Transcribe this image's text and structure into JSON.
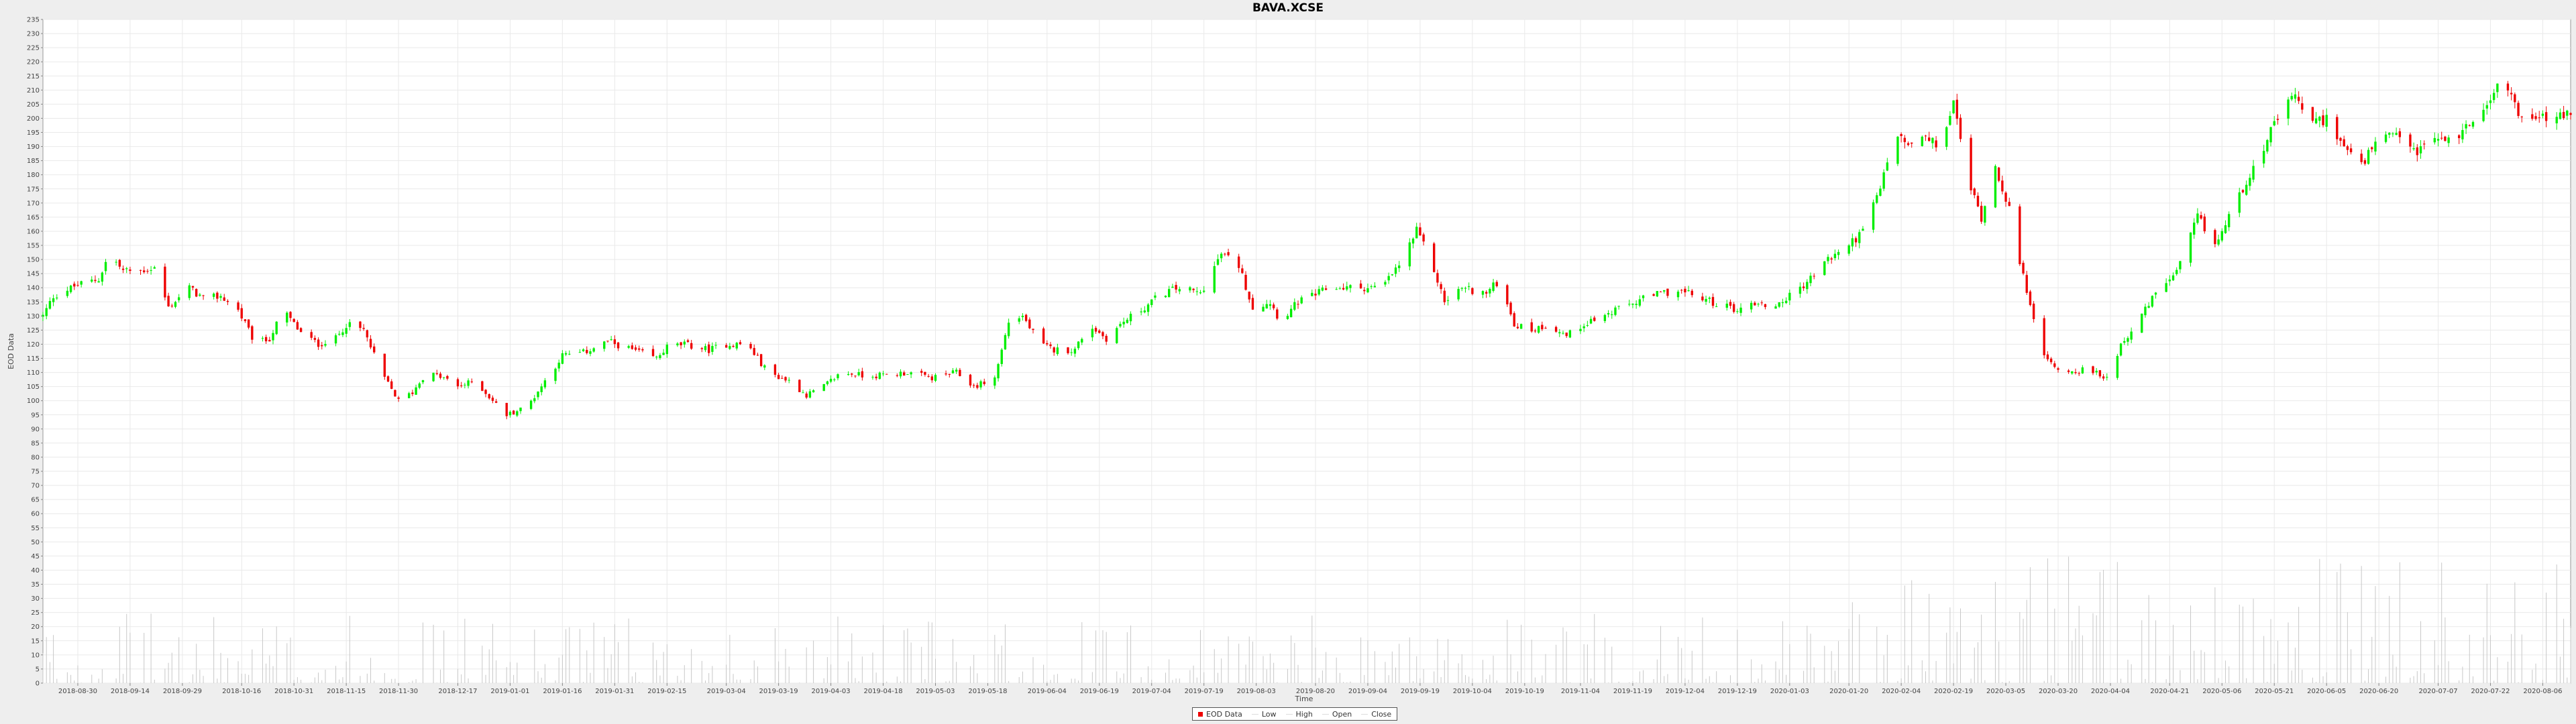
{
  "chart_data": {
    "type": "candlestick",
    "title": "BAVA.XCSE",
    "xlabel": "Time",
    "ylabel": "EOD Data",
    "ylim": [
      0,
      235
    ],
    "ytick_step": 5,
    "grid": true,
    "legend_position": "bottom-center",
    "legend": [
      "EOD Data",
      "Low",
      "High",
      "Open",
      "Close"
    ],
    "colors": {
      "up": "#00ee00",
      "down": "#ee0000",
      "volume": "#c8c8c8",
      "grid": "#e9e9e9",
      "plot_bg": "#ffffff"
    },
    "x_range": [
      "2018-08-20",
      "2020-08-14"
    ],
    "x_tick_labels": [
      "2018-08-30",
      "2018-09-14",
      "2018-09-29",
      "2018-10-16",
      "2018-10-31",
      "2018-11-15",
      "2018-11-30",
      "2018-12-17",
      "2019-01-01",
      "2019-01-16",
      "2019-01-31",
      "2019-02-15",
      "2019-03-04",
      "2019-03-19",
      "2019-04-03",
      "2019-04-18",
      "2019-05-03",
      "2019-05-18",
      "2019-06-04",
      "2019-06-19",
      "2019-07-04",
      "2019-07-19",
      "2019-08-03",
      "2019-08-20",
      "2019-09-04",
      "2019-09-19",
      "2019-10-04",
      "2019-10-19",
      "2019-11-04",
      "2019-11-19",
      "2019-12-04",
      "2019-12-19",
      "2020-01-03",
      "2020-01-20",
      "2020-02-04",
      "2020-02-19",
      "2020-03-05",
      "2020-03-20",
      "2020-04-04",
      "2020-04-21",
      "2020-05-06",
      "2020-05-21",
      "2020-06-05",
      "2020-06-20",
      "2020-07-07",
      "2020-07-22",
      "2020-08-06"
    ],
    "price_path": [
      [
        "2018-08-20",
        130
      ],
      [
        "2018-08-23",
        137
      ],
      [
        "2018-08-30",
        141
      ],
      [
        "2018-09-05",
        143
      ],
      [
        "2018-09-08",
        152
      ],
      [
        "2018-09-12",
        146
      ],
      [
        "2018-09-17",
        146
      ],
      [
        "2018-09-21",
        147
      ],
      [
        "2018-09-25",
        133
      ],
      [
        "2018-10-01",
        140
      ],
      [
        "2018-10-05",
        136
      ],
      [
        "2018-10-10",
        137
      ],
      [
        "2018-10-15",
        132
      ],
      [
        "2018-10-20",
        120
      ],
      [
        "2018-10-24",
        122
      ],
      [
        "2018-10-28",
        132
      ],
      [
        "2018-11-02",
        124
      ],
      [
        "2018-11-07",
        120
      ],
      [
        "2018-11-12",
        122
      ],
      [
        "2018-11-15",
        127
      ],
      [
        "2018-11-20",
        125
      ],
      [
        "2018-11-25",
        110
      ],
      [
        "2018-11-30",
        100
      ],
      [
        "2018-12-04",
        103
      ],
      [
        "2018-12-08",
        110
      ],
      [
        "2018-12-13",
        108
      ],
      [
        "2018-12-17",
        105
      ],
      [
        "2018-12-22",
        107
      ],
      [
        "2018-12-27",
        100
      ],
      [
        "2018-12-31",
        95
      ],
      [
        "2019-01-06",
        98
      ],
      [
        "2019-01-11",
        107
      ],
      [
        "2019-01-16",
        116
      ],
      [
        "2019-01-22",
        117
      ],
      [
        "2019-01-29",
        121
      ],
      [
        "2019-02-05",
        118
      ],
      [
        "2019-02-12",
        115
      ],
      [
        "2019-02-15",
        119
      ],
      [
        "2019-02-20",
        120
      ],
      [
        "2019-02-27",
        118
      ],
      [
        "2019-03-04",
        120
      ],
      [
        "2019-03-10",
        120
      ],
      [
        "2019-03-16",
        110
      ],
      [
        "2019-03-22",
        107
      ],
      [
        "2019-03-27",
        102
      ],
      [
        "2019-04-01",
        105
      ],
      [
        "2019-04-06",
        110
      ],
      [
        "2019-04-12",
        109
      ],
      [
        "2019-04-18",
        109
      ],
      [
        "2019-04-25",
        110
      ],
      [
        "2019-05-02",
        108
      ],
      [
        "2019-05-09",
        110
      ],
      [
        "2019-05-14",
        105
      ],
      [
        "2019-05-20",
        108
      ],
      [
        "2019-05-24",
        128
      ],
      [
        "2019-05-28",
        130
      ],
      [
        "2019-06-02",
        120
      ],
      [
        "2019-06-06",
        118
      ],
      [
        "2019-06-12",
        118
      ],
      [
        "2019-06-16",
        127
      ],
      [
        "2019-06-21",
        122
      ],
      [
        "2019-06-26",
        128
      ],
      [
        "2019-07-02",
        133
      ],
      [
        "2019-07-07",
        138
      ],
      [
        "2019-07-12",
        140
      ],
      [
        "2019-07-18",
        138
      ],
      [
        "2019-07-24",
        152
      ],
      [
        "2019-07-29",
        148
      ],
      [
        "2019-08-02",
        133
      ],
      [
        "2019-08-07",
        135
      ],
      [
        "2019-08-10",
        128
      ],
      [
        "2019-08-15",
        135
      ],
      [
        "2019-08-19",
        137
      ],
      [
        "2019-08-24",
        140
      ],
      [
        "2019-08-29",
        140
      ],
      [
        "2019-09-03",
        140
      ],
      [
        "2019-09-08",
        140
      ],
      [
        "2019-09-13",
        148
      ],
      [
        "2019-09-18",
        160
      ],
      [
        "2019-09-22",
        150
      ],
      [
        "2019-09-26",
        135
      ],
      [
        "2019-10-01",
        140
      ],
      [
        "2019-10-08",
        138
      ],
      [
        "2019-10-12",
        143
      ],
      [
        "2019-10-16",
        127
      ],
      [
        "2019-10-21",
        125
      ],
      [
        "2019-10-26",
        127
      ],
      [
        "2019-10-31",
        123
      ],
      [
        "2019-11-06",
        128
      ],
      [
        "2019-11-11",
        130
      ],
      [
        "2019-11-16",
        133
      ],
      [
        "2019-11-22",
        136
      ],
      [
        "2019-11-27",
        138
      ],
      [
        "2019-12-02",
        139
      ],
      [
        "2019-12-07",
        137
      ],
      [
        "2019-12-14",
        134
      ],
      [
        "2019-12-20",
        132
      ],
      [
        "2019-12-23",
        135
      ],
      [
        "2019-12-29",
        133
      ],
      [
        "2020-01-03",
        137
      ],
      [
        "2020-01-08",
        142
      ],
      [
        "2020-01-14",
        150
      ],
      [
        "2020-01-19",
        154
      ],
      [
        "2020-01-24",
        160
      ],
      [
        "2020-01-29",
        175
      ],
      [
        "2020-02-02",
        195
      ],
      [
        "2020-02-06",
        190
      ],
      [
        "2020-02-10",
        193
      ],
      [
        "2020-02-15",
        190
      ],
      [
        "2020-02-19",
        205
      ],
      [
        "2020-02-24",
        175
      ],
      [
        "2020-02-27",
        165
      ],
      [
        "2020-03-02",
        183
      ],
      [
        "2020-03-06",
        168
      ],
      [
        "2020-03-09",
        148
      ],
      [
        "2020-03-12",
        135
      ],
      [
        "2020-03-16",
        115
      ],
      [
        "2020-03-22",
        110
      ],
      [
        "2020-03-28",
        111
      ],
      [
        "2020-04-03",
        108
      ],
      [
        "2020-04-07",
        120
      ],
      [
        "2020-04-12",
        128
      ],
      [
        "2020-04-18",
        140
      ],
      [
        "2020-04-23",
        145
      ],
      [
        "2020-04-29",
        165
      ],
      [
        "2020-05-04",
        155
      ],
      [
        "2020-05-08",
        165
      ],
      [
        "2020-05-13",
        178
      ],
      [
        "2020-05-18",
        190
      ],
      [
        "2020-05-22",
        200
      ],
      [
        "2020-05-27",
        208
      ],
      [
        "2020-06-01",
        198
      ],
      [
        "2020-06-05",
        200
      ],
      [
        "2020-06-10",
        190
      ],
      [
        "2020-06-15",
        183
      ],
      [
        "2020-06-20",
        193
      ],
      [
        "2020-06-26",
        193
      ],
      [
        "2020-07-01",
        188
      ],
      [
        "2020-07-06",
        193
      ],
      [
        "2020-07-11",
        192
      ],
      [
        "2020-07-16",
        198
      ],
      [
        "2020-07-22",
        208
      ],
      [
        "2020-07-26",
        213
      ],
      [
        "2020-07-31",
        200
      ],
      [
        "2020-08-06",
        200
      ],
      [
        "2020-08-14",
        201
      ]
    ],
    "volume_ylim": [
      0,
      235
    ],
    "volume_max": 45
  }
}
